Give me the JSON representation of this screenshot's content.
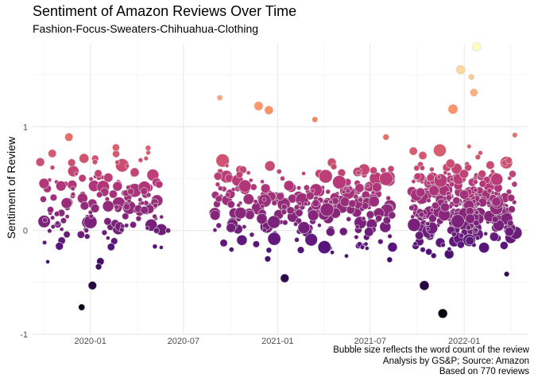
{
  "chart_data": {
    "type": "scatter",
    "title": "Sentiment of Amazon Reviews Over Time",
    "subtitle": "Fashion-Focus-Sweaters-Chihuahua-Clothing",
    "xlabel": "",
    "ylabel": "Sentiment of Review",
    "caption": [
      "Bubble size reflects the word count of the review",
      "Analysis by GS&P; Source: Amazon",
      "Based on 770 reviews"
    ],
    "x_ticks": [
      "2020-01",
      "2020-07",
      "2021-01",
      "2021-07",
      "2022-01"
    ],
    "y_ticks": [
      -1,
      0,
      1
    ],
    "xlim": [
      "2019-09-10",
      "2022-05-05"
    ],
    "ylim": [
      -1,
      1.8
    ],
    "grid": true,
    "color_scale": {
      "low": "#000004",
      "mid1": "#51127c",
      "mid2": "#b73779",
      "mid3": "#fc8961",
      "high": "#fcfdbf"
    },
    "highlight_points": [
      {
        "x": "2019-09-25",
        "y": 0.66
      },
      {
        "x": "2019-10-15",
        "y": 0.2
      },
      {
        "x": "2019-11-20",
        "y": 0.9
      },
      {
        "x": "2019-12-15",
        "y": -0.74
      },
      {
        "x": "2020-01-10",
        "y": 0.66
      },
      {
        "x": "2020-01-05",
        "y": -0.53
      },
      {
        "x": "2020-02-20",
        "y": 0.8
      },
      {
        "x": "2020-04-15",
        "y": 0.38
      },
      {
        "x": "2020-06-01",
        "y": 0.0
      },
      {
        "x": "2020-09-10",
        "y": 1.28
      },
      {
        "x": "2020-11-25",
        "y": 1.2
      },
      {
        "x": "2020-12-15",
        "y": 1.16
      },
      {
        "x": "2021-01-15",
        "y": -0.46
      },
      {
        "x": "2021-03-15",
        "y": 1.07
      },
      {
        "x": "2021-08-01",
        "y": 0.9
      },
      {
        "x": "2021-10-15",
        "y": -0.53
      },
      {
        "x": "2021-11-20",
        "y": -0.8
      },
      {
        "x": "2021-12-25",
        "y": 1.55
      },
      {
        "x": "2021-12-10",
        "y": 1.17
      },
      {
        "x": "2022-01-15",
        "y": 1.48
      },
      {
        "x": "2022-01-25",
        "y": 1.77
      },
      {
        "x": "2022-01-20",
        "y": 1.33
      },
      {
        "x": "2022-04-10",
        "y": 0.92
      },
      {
        "x": "2022-03-25",
        "y": -0.42
      }
    ]
  }
}
